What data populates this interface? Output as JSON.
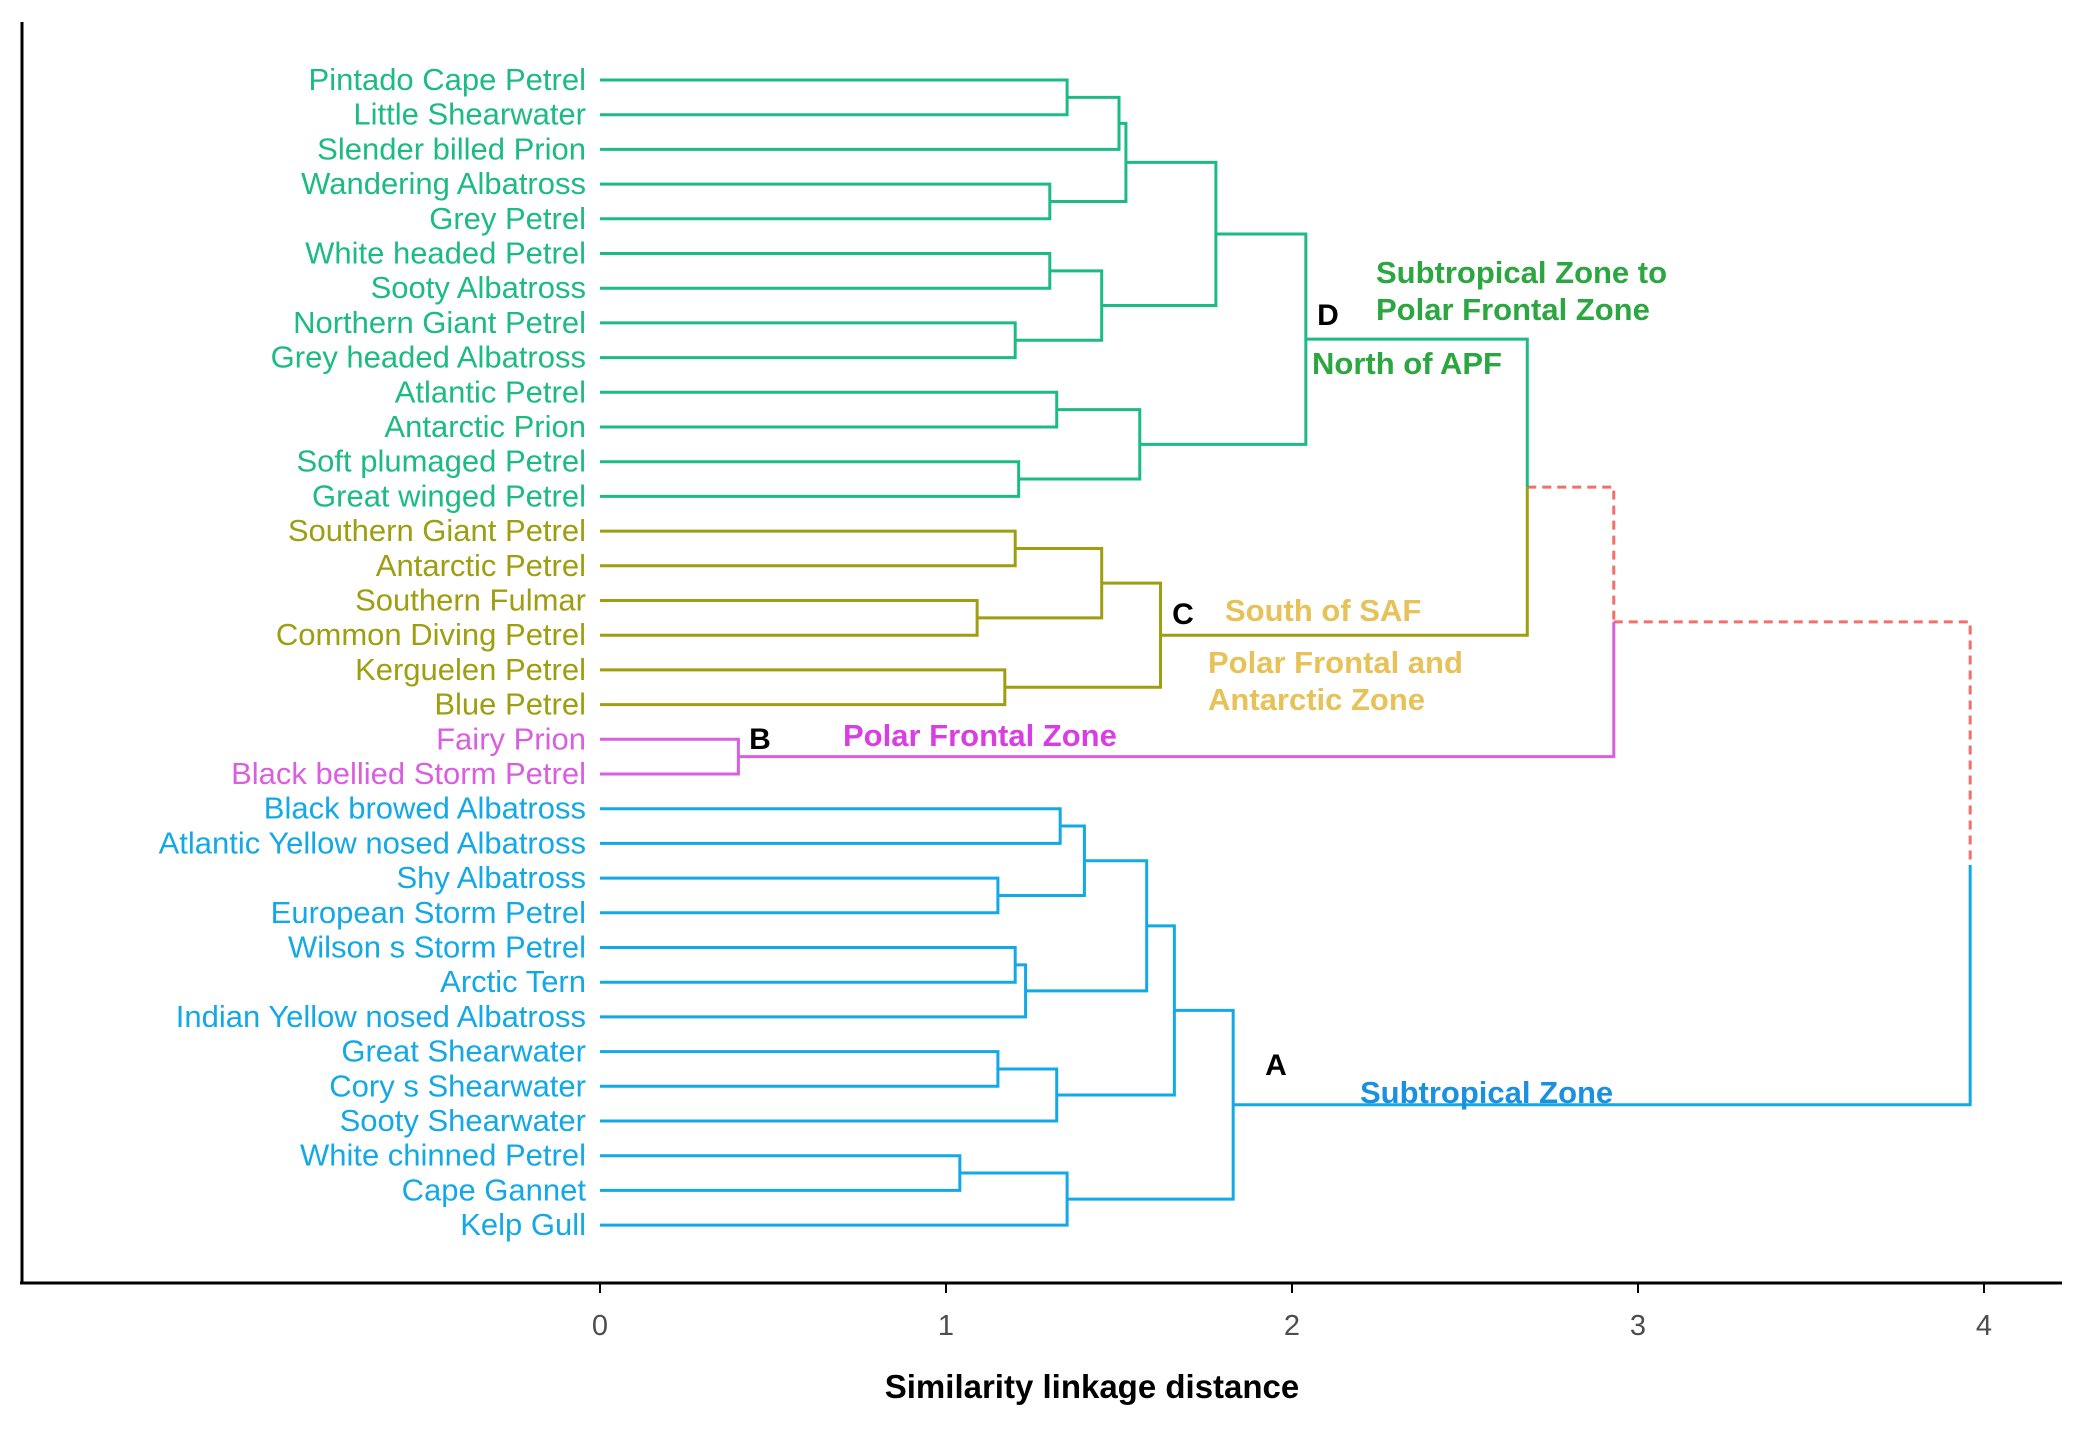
{
  "chart_data": {
    "type": "dendrogram",
    "orientation": "horizontal",
    "xlabel": "Similarity linkage distance",
    "x_ticks": [
      0,
      1,
      2,
      3,
      4
    ],
    "xlim": [
      -1.67,
      4.22
    ],
    "colors": {
      "D": "#1dbb84",
      "C": "#9e9e10",
      "B": "#d95fe0",
      "A": "#13a8e6",
      "root": "#f0706a",
      "darkgreen": "#2ba640",
      "gold": "#e6c259",
      "magenta": "#d83fe2",
      "blue": "#1b8fe0"
    },
    "leaves": [
      {
        "name": "Pintado Cape Petrel",
        "cluster": "D"
      },
      {
        "name": "Little Shearwater",
        "cluster": "D"
      },
      {
        "name": "Slender billed Prion",
        "cluster": "D"
      },
      {
        "name": "Wandering Albatross",
        "cluster": "D"
      },
      {
        "name": "Grey Petrel",
        "cluster": "D"
      },
      {
        "name": "White headed Petrel",
        "cluster": "D"
      },
      {
        "name": "Sooty Albatross",
        "cluster": "D"
      },
      {
        "name": "Northern Giant Petrel",
        "cluster": "D"
      },
      {
        "name": "Grey headed Albatross",
        "cluster": "D"
      },
      {
        "name": "Atlantic Petrel",
        "cluster": "D"
      },
      {
        "name": "Antarctic Prion",
        "cluster": "D"
      },
      {
        "name": "Soft plumaged Petrel",
        "cluster": "D"
      },
      {
        "name": "Great winged Petrel",
        "cluster": "D"
      },
      {
        "name": "Southern Giant Petrel",
        "cluster": "C"
      },
      {
        "name": "Antarctic Petrel",
        "cluster": "C"
      },
      {
        "name": "Southern Fulmar",
        "cluster": "C"
      },
      {
        "name": "Common Diving Petrel",
        "cluster": "C"
      },
      {
        "name": "Kerguelen Petrel",
        "cluster": "C"
      },
      {
        "name": "Blue Petrel",
        "cluster": "C"
      },
      {
        "name": "Fairy Prion",
        "cluster": "B"
      },
      {
        "name": "Black bellied Storm Petrel",
        "cluster": "B"
      },
      {
        "name": "Black browed Albatross",
        "cluster": "A"
      },
      {
        "name": "Atlantic Yellow nosed Albatross",
        "cluster": "A"
      },
      {
        "name": "Shy Albatross",
        "cluster": "A"
      },
      {
        "name": "European Storm Petrel",
        "cluster": "A"
      },
      {
        "name": "Wilson s Storm Petrel",
        "cluster": "A"
      },
      {
        "name": "Arctic Tern",
        "cluster": "A"
      },
      {
        "name": "Indian Yellow nosed Albatross",
        "cluster": "A"
      },
      {
        "name": "Great Shearwater",
        "cluster": "A"
      },
      {
        "name": "Cory s Shearwater",
        "cluster": "A"
      },
      {
        "name": "Sooty Shearwater",
        "cluster": "A"
      },
      {
        "name": "White chinned Petrel",
        "cluster": "A"
      },
      {
        "name": "Cape Gannet",
        "cluster": "A"
      },
      {
        "name": "Kelp Gull",
        "cluster": "A"
      }
    ],
    "merges": [
      {
        "id": "m1",
        "a": 0,
        "b": 1,
        "h": 1.35,
        "cluster": "D"
      },
      {
        "id": "m2",
        "a": "m1",
        "b": 2,
        "h": 1.5,
        "cluster": "D"
      },
      {
        "id": "m3",
        "a": 3,
        "b": 4,
        "h": 1.3,
        "cluster": "D"
      },
      {
        "id": "m4",
        "a": "m2",
        "b": "m3",
        "h": 1.52,
        "cluster": "D"
      },
      {
        "id": "m5",
        "a": 5,
        "b": 6,
        "h": 1.3,
        "cluster": "D"
      },
      {
        "id": "m6",
        "a": 7,
        "b": 8,
        "h": 1.2,
        "cluster": "D"
      },
      {
        "id": "m7",
        "a": "m5",
        "b": "m6",
        "h": 1.45,
        "cluster": "D"
      },
      {
        "id": "m8",
        "a": "m4",
        "b": "m7",
        "h": 1.78,
        "cluster": "D"
      },
      {
        "id": "m9",
        "a": 9,
        "b": 10,
        "h": 1.32,
        "cluster": "D"
      },
      {
        "id": "m10",
        "a": 11,
        "b": 12,
        "h": 1.21,
        "cluster": "D"
      },
      {
        "id": "m11",
        "a": "m9",
        "b": "m10",
        "h": 1.56,
        "cluster": "D"
      },
      {
        "id": "m12",
        "a": "m8",
        "b": "m11",
        "h": 2.04,
        "cluster": "D"
      },
      {
        "id": "m13",
        "a": 13,
        "b": 14,
        "h": 1.2,
        "cluster": "C"
      },
      {
        "id": "m14",
        "a": 15,
        "b": 16,
        "h": 1.09,
        "cluster": "C"
      },
      {
        "id": "m15",
        "a": "m13",
        "b": "m14",
        "h": 1.45,
        "cluster": "C"
      },
      {
        "id": "m16",
        "a": 17,
        "b": 18,
        "h": 1.17,
        "cluster": "C"
      },
      {
        "id": "m17",
        "a": "m15",
        "b": "m16",
        "h": 1.62,
        "cluster": "C"
      },
      {
        "id": "m18",
        "a": "m12",
        "b": "m17",
        "h": 2.68,
        "cluster": "D"
      },
      {
        "id": "m19",
        "a": 19,
        "b": 20,
        "h": 0.4,
        "cluster": "B"
      },
      {
        "id": "m20",
        "a": "m18",
        "b": "m19",
        "h": 2.93,
        "cluster": "root"
      },
      {
        "id": "m21",
        "a": 21,
        "b": 22,
        "h": 1.33,
        "cluster": "A"
      },
      {
        "id": "m22",
        "a": 23,
        "b": 24,
        "h": 1.15,
        "cluster": "A"
      },
      {
        "id": "m23",
        "a": "m21",
        "b": "m22",
        "h": 1.4,
        "cluster": "A"
      },
      {
        "id": "m24",
        "a": 25,
        "b": 26,
        "h": 1.2,
        "cluster": "A"
      },
      {
        "id": "m25",
        "a": "m24",
        "b": 27,
        "h": 1.23,
        "cluster": "A"
      },
      {
        "id": "m26",
        "a": "m23",
        "b": "m25",
        "h": 1.58,
        "cluster": "A"
      },
      {
        "id": "m27",
        "a": 28,
        "b": 29,
        "h": 1.15,
        "cluster": "A"
      },
      {
        "id": "m28",
        "a": "m27",
        "b": 30,
        "h": 1.32,
        "cluster": "A"
      },
      {
        "id": "m29",
        "a": "m26",
        "b": "m28",
        "h": 1.66,
        "cluster": "A"
      },
      {
        "id": "m30",
        "a": 31,
        "b": 32,
        "h": 1.04,
        "cluster": "A"
      },
      {
        "id": "m31",
        "a": "m30",
        "b": 33,
        "h": 1.35,
        "cluster": "A"
      },
      {
        "id": "m32",
        "a": "m29",
        "b": "m31",
        "h": 1.83,
        "cluster": "A"
      },
      {
        "id": "m33",
        "a": "m20",
        "b": "m32",
        "h": 3.96,
        "cluster": "root"
      }
    ],
    "cluster_labels": [
      {
        "letter": "D",
        "node": "m18",
        "zones": [
          {
            "text": "Subtropical Zone to",
            "color": "darkgreen"
          },
          {
            "text": "Polar Frontal Zone",
            "color": "darkgreen"
          },
          {
            "text": "North of APF",
            "color": "darkgreen"
          }
        ]
      },
      {
        "letter": "C",
        "node": "m17",
        "zones": [
          {
            "text": "South of SAF",
            "color": "gold"
          },
          {
            "text": "Polar Frontal and",
            "color": "gold"
          },
          {
            "text": "Antarctic Zone",
            "color": "gold"
          }
        ]
      },
      {
        "letter": "B",
        "node": "m19",
        "zones": [
          {
            "text": "Polar Frontal Zone",
            "color": "magenta"
          }
        ]
      },
      {
        "letter": "A",
        "node": "m32",
        "zones": [
          {
            "text": "Subtropical Zone",
            "color": "blue"
          }
        ]
      }
    ]
  }
}
